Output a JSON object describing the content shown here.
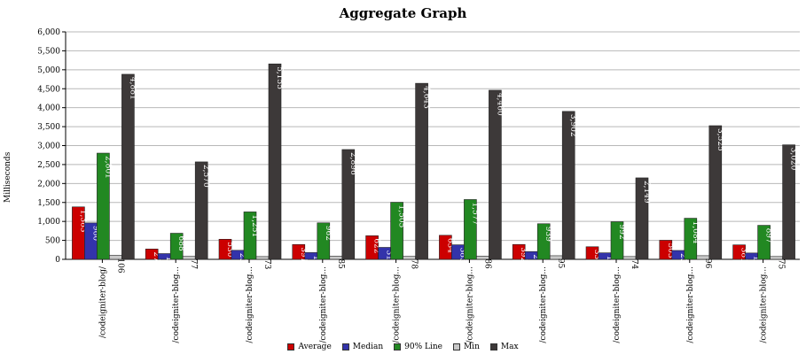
{
  "chart_data": {
    "type": "bar",
    "title": "Aggregate Graph",
    "xlabel": "",
    "ylabel": "Milliseconds",
    "ylim": [
      0,
      6000
    ],
    "yticks": [
      "0",
      "500",
      "1,000",
      "1,500",
      "2,000",
      "2,500",
      "3,000",
      "3,500",
      "4,000",
      "4,500",
      "5,000",
      "5,500",
      "6,000"
    ],
    "grid": true,
    "legend_position": "bottom",
    "categories": [
      "/codeigniter-blog/",
      "/codeigniter-blog...",
      "/codeigniter-blog...",
      "/codeigniter-blog...",
      "/codeigniter-blog...",
      "/codeigniter-blog...",
      "/codeigniter-blog...",
      "/codeigniter-blog...",
      "/codeigniter-blog...",
      "/codeigniter-blog..."
    ],
    "series": [
      {
        "name": "Average",
        "color": "#cc0000",
        "values": [
          1383,
          272,
          530,
          391,
          622,
          634,
          392,
          332,
          503,
          381
        ],
        "labels": [
          "1,383",
          "272",
          "530",
          "391",
          "622",
          "634",
          "392",
          "332",
          "503",
          "381"
        ]
      },
      {
        "name": "Median",
        "color": "#3333aa",
        "values": [
          960,
          151,
          238,
          178,
          315,
          383,
          204,
          171,
          234,
          167
        ],
        "labels": [
          "960",
          "151",
          "238",
          "178",
          "315",
          "383",
          "204",
          "171",
          "234",
          "167"
        ]
      },
      {
        "name": "90% Line",
        "color": "#228822",
        "values": [
          2801,
          688,
          1251,
          962,
          1505,
          1577,
          939,
          992,
          1084,
          897
        ],
        "labels": [
          "2,801",
          "688",
          "1,251",
          "962",
          "1,505",
          "1,577",
          "939",
          "992",
          "1,084",
          "897"
        ]
      },
      {
        "name": "Min",
        "color": "#c8c8c8",
        "values": [
          106,
          77,
          73,
          85,
          78,
          86,
          95,
          74,
          96,
          75
        ],
        "labels": [
          "106",
          "77",
          "73",
          "85",
          "78",
          "86",
          "95",
          "74",
          "96",
          "75"
        ]
      },
      {
        "name": "Max",
        "color": "#3d3939",
        "values": [
          4881,
          2570,
          5155,
          2896,
          4643,
          4460,
          3902,
          2149,
          3525,
          3020
        ],
        "labels": [
          "4,881",
          "2,570",
          "5,155",
          "2,896",
          "4,643",
          "4,460",
          "3,902",
          "2,149",
          "3,525",
          "3,020"
        ]
      }
    ]
  }
}
